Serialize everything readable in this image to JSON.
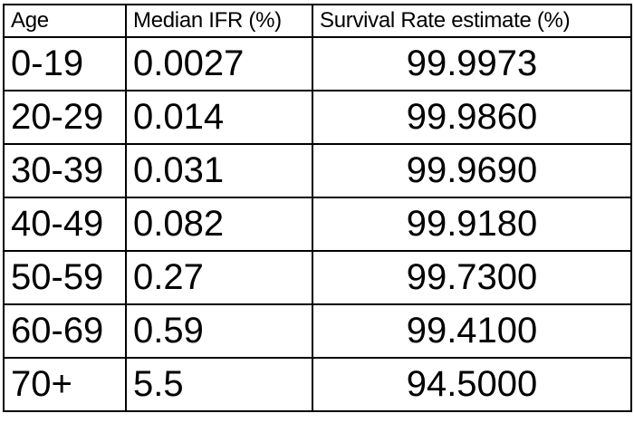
{
  "table": {
    "headers": [
      "Age",
      "Median IFR (%)",
      "Survival Rate estimate (%)"
    ],
    "rows": [
      [
        "0-19",
        "0.0027",
        "99.9973"
      ],
      [
        "20-29",
        "0.014",
        "99.9860"
      ],
      [
        "30-39",
        "0.031",
        "99.9690"
      ],
      [
        "40-49",
        "0.082",
        "99.9180"
      ],
      [
        "50-59",
        "0.27",
        "99.7300"
      ],
      [
        "60-69",
        "0.59",
        "99.4100"
      ],
      [
        "70+",
        "5.5",
        "94.5000"
      ]
    ]
  }
}
